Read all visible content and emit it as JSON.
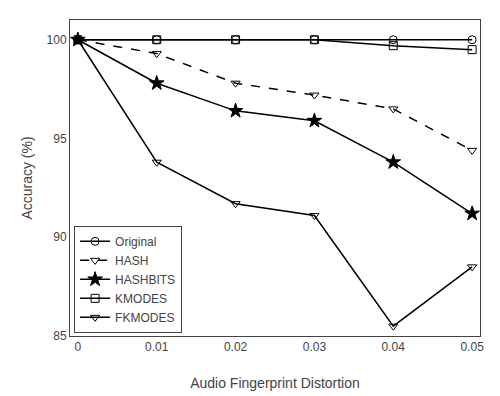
{
  "chart_data": {
    "type": "line",
    "x": [
      0,
      0.01,
      0.02,
      0.03,
      0.04,
      0.05
    ],
    "series": [
      {
        "name": "Original",
        "color": "black",
        "marker": "circle-open",
        "line_style": "solid",
        "values": [
          100,
          100,
          100,
          100,
          100,
          100
        ]
      },
      {
        "name": "HASH",
        "color": "black",
        "marker": "triangle-down-open",
        "line_style": "dashed",
        "values": [
          100,
          99.3,
          97.8,
          97.2,
          96.5,
          94.4
        ]
      },
      {
        "name": "HASHBITS",
        "color": "black",
        "marker": "star",
        "line_style": "solid",
        "values": [
          100,
          97.8,
          96.4,
          95.9,
          93.8,
          91.2
        ]
      },
      {
        "name": "KMODES",
        "color": "black",
        "marker": "square-open",
        "line_style": "solid",
        "values": [
          100,
          100,
          100,
          100,
          99.7,
          99.5
        ]
      },
      {
        "name": "FKMODES",
        "color": "black",
        "marker": "triangle-down-open",
        "line_style": "solid",
        "values": [
          100,
          93.8,
          91.7,
          91.1,
          85.5,
          88.5
        ]
      }
    ],
    "xlabel": "Audio Fingerprint Distortion",
    "ylabel": "Accuracy (%)",
    "xlim": [
      -0.001,
      0.051
    ],
    "ylim": [
      85,
      101
    ],
    "xticks": [
      0,
      0.01,
      0.02,
      0.03,
      0.04,
      0.05
    ],
    "yticks": [
      85,
      90,
      95,
      100
    ],
    "legend": "lower left",
    "grid": false
  }
}
